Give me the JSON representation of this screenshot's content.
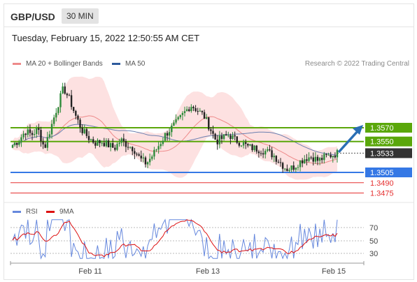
{
  "header": {
    "symbol": "GBP/USD",
    "timeframe": "30 MIN"
  },
  "timestamp": "Tuesday, February 15, 2022 12:50:55 AM CET",
  "credit": "Research © 2022 Trading Central",
  "legend": [
    {
      "label": "MA 20 + Bollinger Bands",
      "color": "#ee8a8a"
    },
    {
      "label": "MA 50",
      "color": "#2d5a9c"
    }
  ],
  "rsi_legend": [
    {
      "label": "RSI",
      "color": "#6688dd"
    },
    {
      "label": "9MA",
      "color": "#dd1111"
    }
  ],
  "chart_data": {
    "type": "candlestick",
    "price_panel": {
      "levels": [
        {
          "value": 1.357,
          "label": "1.3570",
          "color": "#5aa70a",
          "kind": "resistance"
        },
        {
          "value": 1.355,
          "label": "1.3550",
          "color": "#5aa70a",
          "kind": "resistance"
        },
        {
          "value": 1.3533,
          "label": "1.3533",
          "color": "#333333",
          "kind": "last price"
        },
        {
          "value": 1.3505,
          "label": "1.3505",
          "color": "#3578e5",
          "kind": "pivot"
        },
        {
          "value": 1.349,
          "label": "1.3490",
          "color": "#e53030",
          "kind": "support"
        },
        {
          "value": 1.3475,
          "label": "1.3475",
          "color": "#e53030",
          "kind": "support"
        }
      ],
      "close_path": [
        1.3545,
        1.3552,
        1.3565,
        1.356,
        1.3568,
        1.354,
        1.357,
        1.36,
        1.3628,
        1.361,
        1.3585,
        1.3565,
        1.3555,
        1.3548,
        1.355,
        1.3545,
        1.354,
        1.3552,
        1.3545,
        1.354,
        1.3525,
        1.3518,
        1.353,
        1.3545,
        1.356,
        1.357,
        1.358,
        1.3592,
        1.3603,
        1.3596,
        1.3588,
        1.357,
        1.355,
        1.3555,
        1.356,
        1.3552,
        1.3548,
        1.3542,
        1.354,
        1.3538,
        1.3535,
        1.353,
        1.352,
        1.351,
        1.3512,
        1.352,
        1.3526,
        1.3528,
        1.3522,
        1.3527,
        1.353,
        1.3533
      ],
      "x_ticks": [
        "Feb 11",
        "Feb 13",
        "Feb 15"
      ]
    },
    "rsi_panel": {
      "levels": [
        70,
        50,
        30
      ],
      "series": [
        "RSI",
        "9MA"
      ]
    }
  }
}
